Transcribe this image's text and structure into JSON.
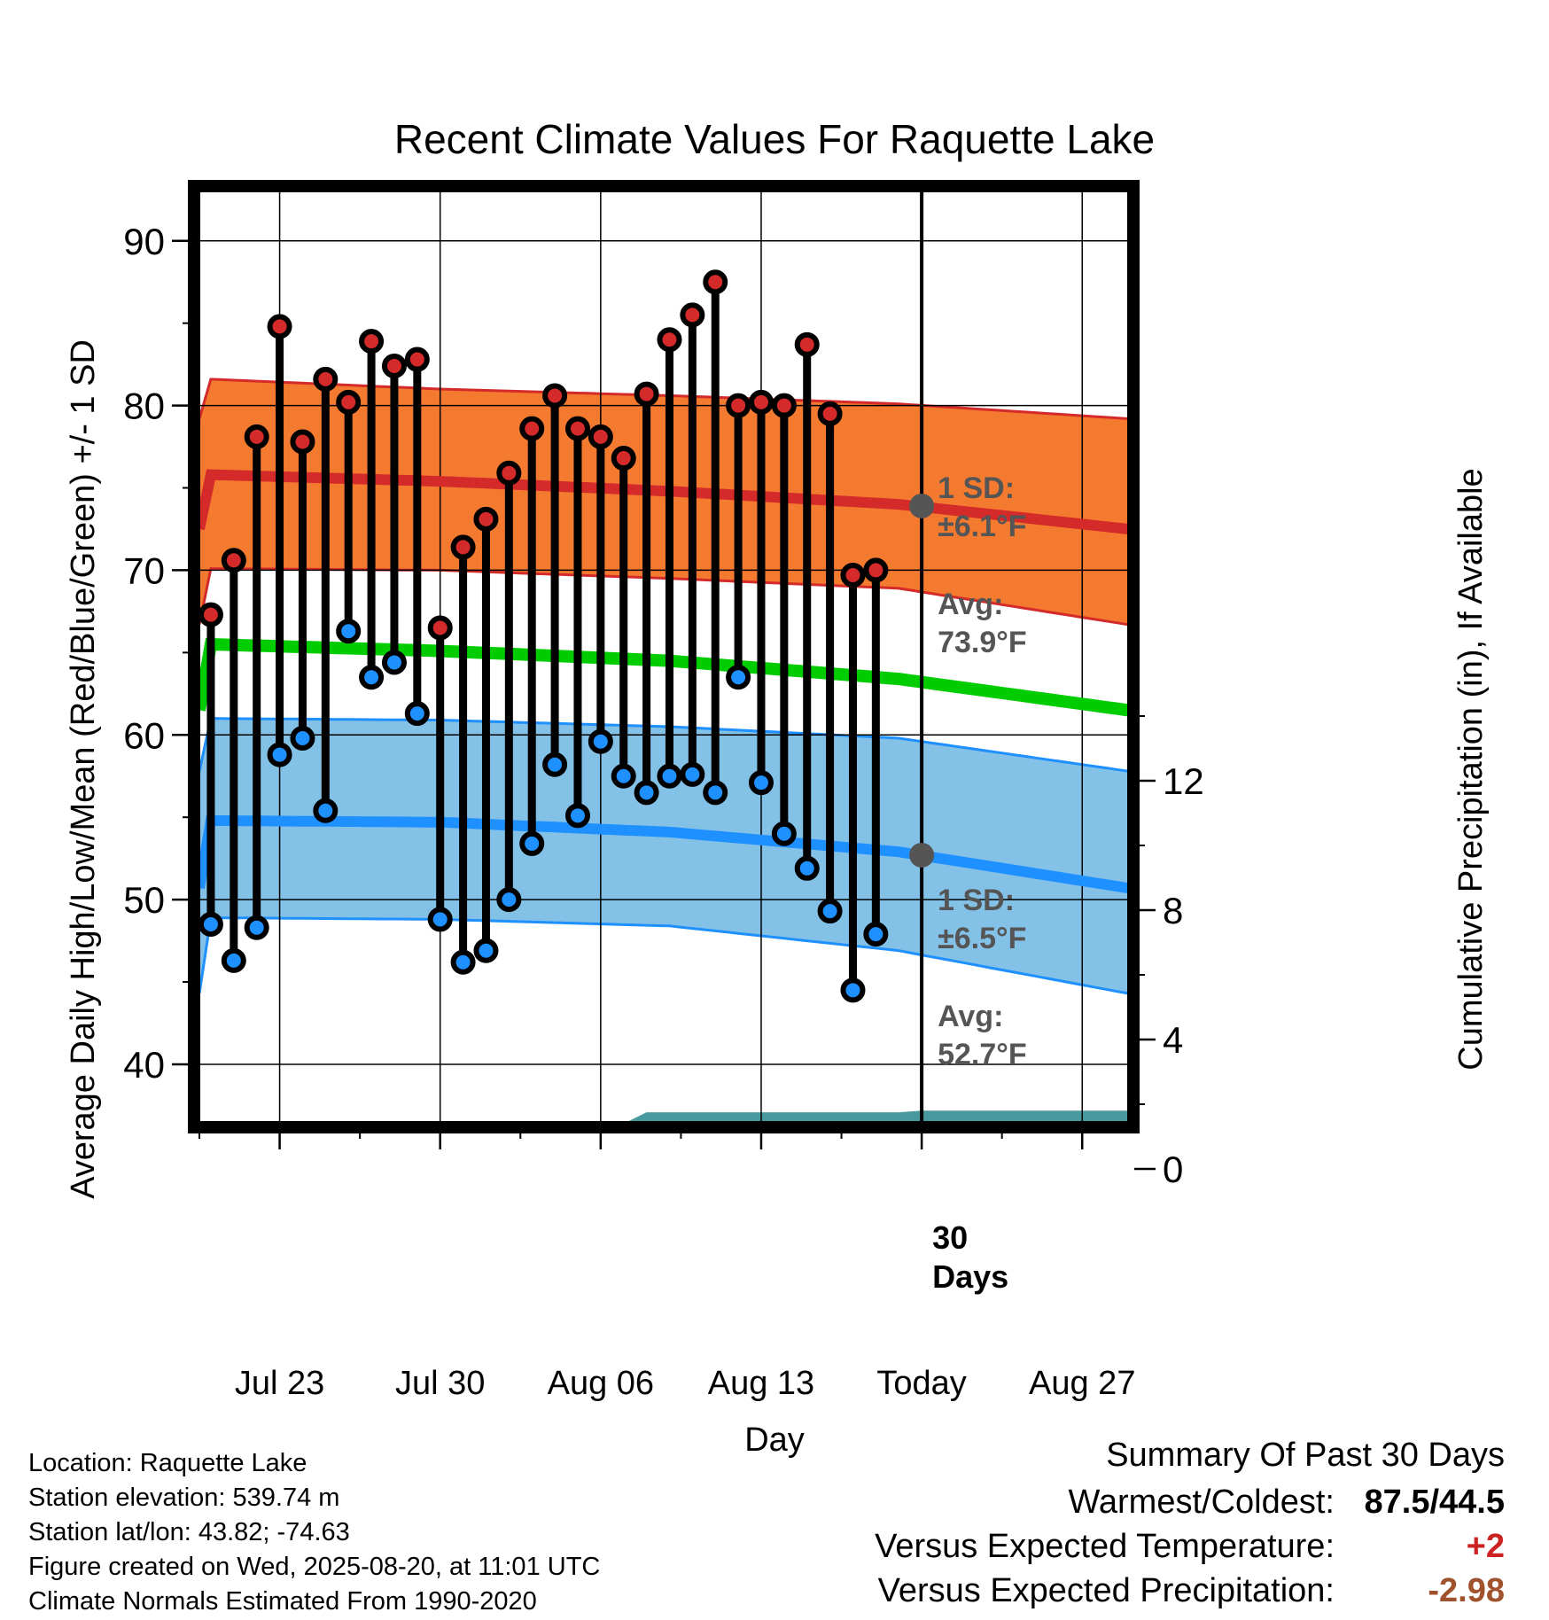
{
  "chart_data": {
    "type": "line",
    "title": "Recent Climate Values For Raquette Lake",
    "xlabel": "Day",
    "ylabel": "Average Daily High/Low/Mean (Red/Blue/Green) +/- 1 SD",
    "y2label": "Cumulative Precipitation (in), If Available",
    "x_tick_labels": [
      "Jul 23",
      "Jul 30",
      "Aug 06",
      "Aug 13",
      "Today",
      "Aug 27"
    ],
    "x_tick_days": [
      3,
      10,
      17,
      24,
      31,
      38
    ],
    "xlim": [
      -0.5,
      40
    ],
    "ylim": [
      36.5,
      93
    ],
    "yticks": [
      40,
      50,
      60,
      70,
      80,
      90
    ],
    "y2lim": [
      0,
      24
    ],
    "y2ticks": [
      0,
      4,
      8,
      12
    ],
    "today_day": 31,
    "today_label": "30\nDays",
    "observed": {
      "days": [
        0,
        1,
        2,
        3,
        4,
        5,
        6,
        7,
        8,
        9,
        10,
        11,
        12,
        13,
        14,
        15,
        16,
        17,
        18,
        19,
        20,
        21,
        22,
        23,
        24,
        25,
        26,
        27,
        28,
        29
      ],
      "highs": [
        67.3,
        70.6,
        78.1,
        84.8,
        77.8,
        81.6,
        80.2,
        83.9,
        82.4,
        82.8,
        66.5,
        71.4,
        73.1,
        75.9,
        78.6,
        80.6,
        78.6,
        78.1,
        76.8,
        80.7,
        84.0,
        85.5,
        87.5,
        80.0,
        80.2,
        80.0,
        83.7,
        79.5,
        69.7,
        70.0
      ],
      "lows": [
        48.5,
        46.3,
        48.3,
        58.8,
        59.8,
        55.4,
        66.3,
        63.5,
        64.4,
        61.3,
        48.8,
        46.2,
        46.9,
        50.0,
        53.4,
        58.2,
        55.1,
        59.6,
        57.5,
        56.5,
        57.5,
        57.6,
        56.5,
        63.5,
        57.1,
        54.0,
        51.9,
        49.3,
        44.5,
        47.9
      ]
    },
    "normals": {
      "days": [
        0,
        10,
        20,
        30,
        40
      ],
      "high_mean": [
        75.8,
        75.4,
        74.8,
        74.0,
        72.5
      ],
      "high_upper": [
        81.6,
        81.0,
        80.6,
        80.1,
        79.2
      ],
      "high_lower": [
        70.1,
        70.0,
        69.5,
        68.9,
        66.7
      ],
      "mean": [
        65.5,
        65.1,
        64.5,
        63.4,
        61.5
      ],
      "low_mean": [
        54.8,
        54.7,
        54.1,
        52.9,
        50.7
      ],
      "low_upper": [
        61.0,
        60.9,
        60.5,
        59.8,
        57.8
      ],
      "low_lower": [
        48.9,
        48.8,
        48.4,
        46.9,
        44.3
      ]
    },
    "precip": {
      "days": [
        0,
        5.5,
        6,
        10,
        11,
        16,
        17,
        19,
        20,
        30,
        31,
        40
      ],
      "values": [
        0,
        0,
        0.9,
        0.9,
        1.0,
        1.0,
        1.05,
        1.75,
        1.75,
        1.75,
        1.8,
        1.8
      ]
    },
    "annotations": {
      "high_sd": "1 SD:",
      "high_sd_val": "±6.1°F",
      "high_avg": "Avg:",
      "high_avg_val": "73.9°F",
      "high_avg_value": 73.9,
      "low_sd": "1 SD:",
      "low_sd_val": "±6.5°F",
      "low_avg": "Avg:",
      "low_avg_val": "52.7°F",
      "low_avg_value": 52.7
    },
    "colors": {
      "high_band": "#f47a30",
      "high_line": "#d42a2a",
      "mean_line": "#00cc00",
      "low_band": "#84c1e7",
      "low_line": "#1e90ff",
      "precip": "#48999e",
      "high_marker": "#d42a2a",
      "low_marker": "#1e90ff",
      "annotation": "#555555"
    },
    "grid": true
  },
  "info": {
    "location": "Location: Raquette Lake",
    "elevation": "Station elevation: 539.74 m",
    "latlon": "Station lat/lon: 43.82; -74.63",
    "created": "Figure created on Wed, 2025-08-20, at 11:01 UTC",
    "normals": "Climate Normals Estimated From 1990-2020"
  },
  "summary": {
    "heading": "Summary Of Past 30 Days",
    "warmest_label": "Warmest/Coldest:",
    "warmest_value": "87.5/44.5",
    "temp_label": "Versus Expected Temperature:",
    "temp_value": "+2",
    "temp_color": "#cc2222",
    "precip_label": "Versus Expected Precipitation:",
    "precip_value": "-2.98",
    "precip_color": "#a0522d"
  }
}
